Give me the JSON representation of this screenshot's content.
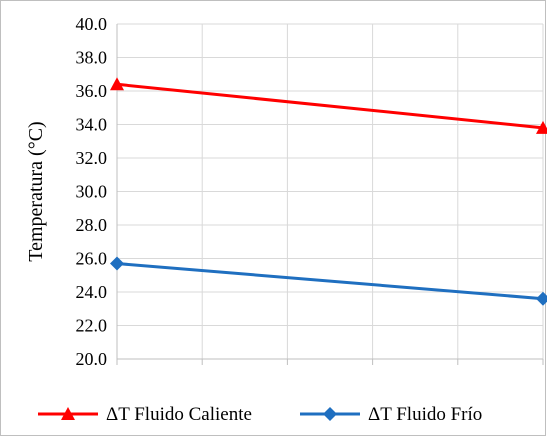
{
  "chart_data": {
    "type": "line",
    "title": "",
    "xlabel": "",
    "ylabel": "Temperatura (°C)",
    "ylim": [
      20.0,
      40.0
    ],
    "y_ticks": [
      "20.0",
      "22.0",
      "24.0",
      "26.0",
      "28.0",
      "30.0",
      "32.0",
      "34.0",
      "36.0",
      "38.0",
      "40.0"
    ],
    "x": [
      0,
      5
    ],
    "grid": true,
    "legend_position": "bottom",
    "series": [
      {
        "name": "ΔT Fluido Caliente",
        "values": [
          36.4,
          33.8
        ],
        "color": "#ff0000",
        "marker": "triangle"
      },
      {
        "name": "ΔT Fluido Frío",
        "values": [
          25.7,
          23.6
        ],
        "color": "#1f6fc0",
        "marker": "diamond"
      }
    ]
  }
}
